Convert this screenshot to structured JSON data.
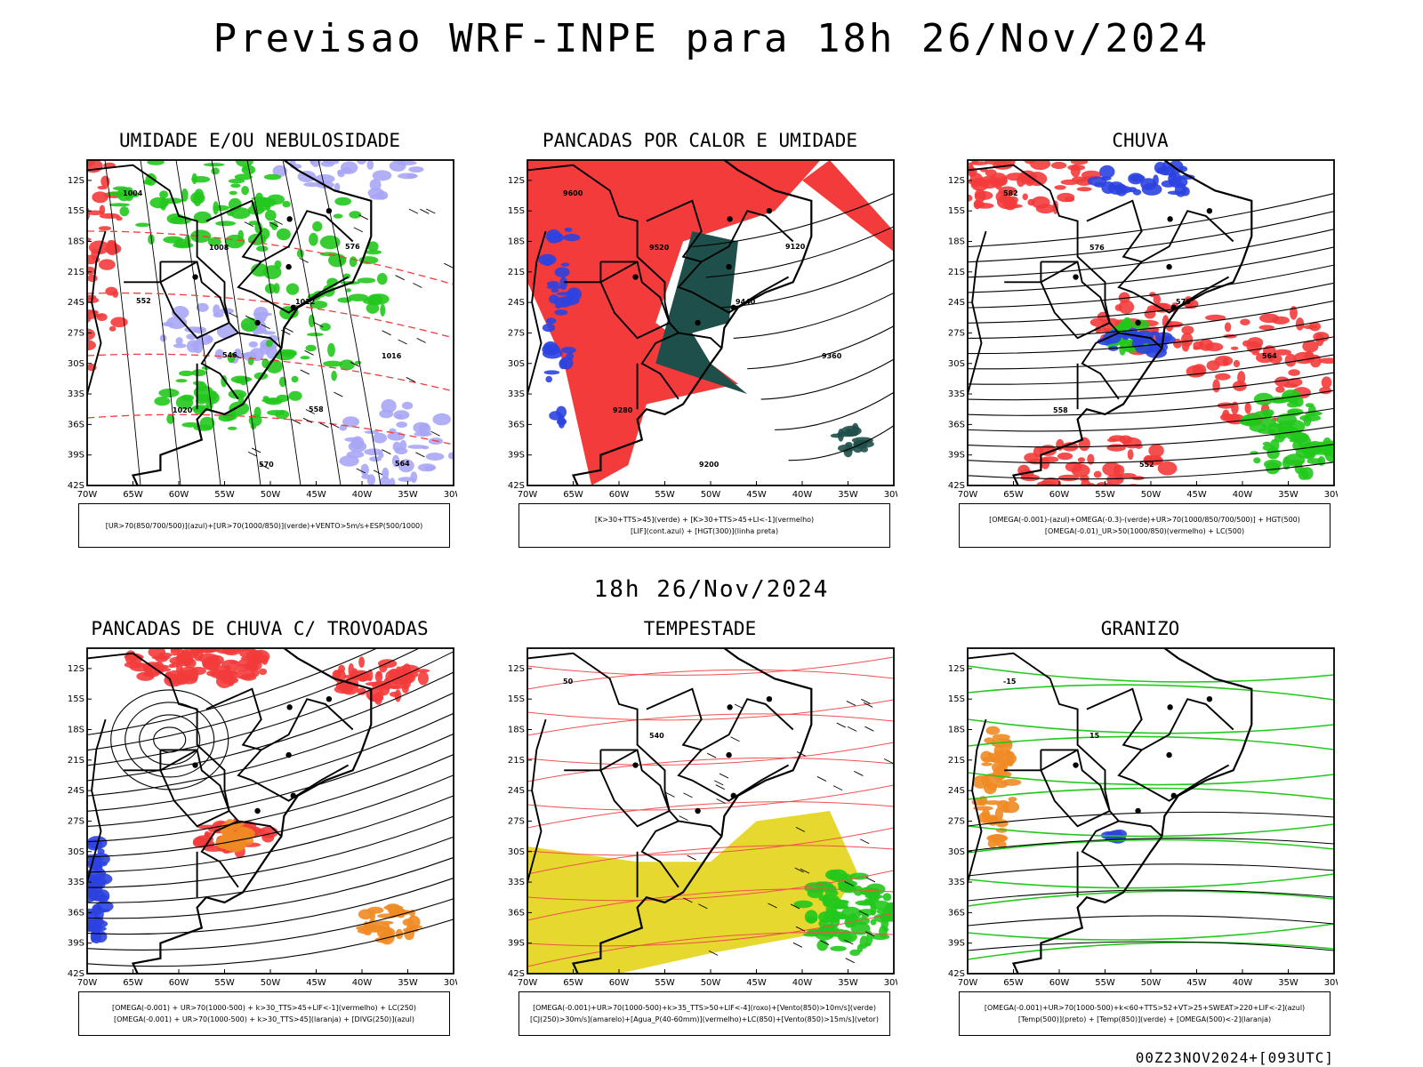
{
  "title": "Previsao WRF-INPE  para 18h 26/Nov/2024",
  "middle_label": "18h 26/Nov/2024",
  "footer": "00Z23NOV2024+[093UTC]",
  "axes": {
    "lat_labels": [
      "12S",
      "15S",
      "18S",
      "21S",
      "24S",
      "27S",
      "30S",
      "33S",
      "36S",
      "39S",
      "42S"
    ],
    "lon_labels": [
      "70W",
      "65W",
      "60W",
      "55W",
      "50W",
      "45W",
      "40W",
      "35W",
      "30W"
    ]
  },
  "colors": {
    "red": "#f33b3b",
    "blue": "#2c43e0",
    "green": "#22c81c",
    "lavender": "#a9a6f5",
    "teal": "#1f4f4a",
    "yellow": "#e6d82f",
    "orange": "#f08a24",
    "contour": "#000000",
    "salmon": "#f05050"
  },
  "chart_data": [
    {
      "type": "heatmap",
      "title": "UMIDADE E/OU NEBULOSIDADE",
      "legend": [
        "[UR>70(850/700/500)](azul)+[UR>70(1000/850)](verde)+VENTO>5m/s+ESP(500/1000)"
      ],
      "contour_labels": [
        "1004",
        "1008",
        "1012",
        "1016",
        "1020",
        "570",
        "576",
        "552",
        "546",
        "558",
        "564"
      ],
      "xlim": [
        -70,
        -30
      ],
      "ylim": [
        -42,
        -10
      ]
    },
    {
      "type": "heatmap",
      "title": "PANCADAS POR CALOR E UMIDADE",
      "legend": [
        "[K>30+TTS>45](verde) + [K>30+TTS>45+LI<-1](vermelho)",
        "[LIF](cont.azul) + [HGT(300)](linha preta)"
      ],
      "contour_labels": [
        "9600",
        "9520",
        "9440",
        "9360",
        "9280",
        "9200",
        "9120"
      ],
      "xlim": [
        -70,
        -30
      ],
      "ylim": [
        -42,
        -10
      ]
    },
    {
      "type": "heatmap",
      "title": "CHUVA",
      "legend": [
        "[OMEGA(-0.001)-(azul)+OMEGA(-0.3)-(verde)+UR>70(1000/850/700/500)] + HGT(500)",
        "[OMEGA(-0.01)_UR>50(1000/850)(vermelho) + LC(500)"
      ],
      "contour_labels": [
        "582",
        "576",
        "570",
        "564",
        "558",
        "552"
      ],
      "xlim": [
        -70,
        -30
      ],
      "ylim": [
        -42,
        -10
      ]
    },
    {
      "type": "heatmap",
      "title": "PANCADAS DE CHUVA C/ TROVOADAS",
      "legend": [
        "[OMEGA(-0.001) + UR>70(1000-500) + k>30_TTS>45+LIF<-1](vermelho) + LC(250)",
        "[OMEGA(-0.001) + UR>70(1000-500) + k>30_TTS>45](laranja) + [DIVG(250)](azul)"
      ],
      "contour_labels": [],
      "xlim": [
        -70,
        -30
      ],
      "ylim": [
        -42,
        -10
      ]
    },
    {
      "type": "heatmap",
      "title": "TEMPESTADE",
      "legend": [
        "[OMEGA(-0.001)+UR>70(1000-500)+k>35_TTS>50+LIF<-4](roxo)+[Vento(850)>10m/s](verde)",
        "[CJ(250)>30m/s](amarelo)+[Agua_P(40-60mm)](vermelho)+LC(850)+[Vento(850)>15m/s](vetor)"
      ],
      "contour_labels": [
        "50",
        "540"
      ],
      "xlim": [
        -70,
        -30
      ],
      "ylim": [
        -42,
        -10
      ]
    },
    {
      "type": "heatmap",
      "title": "GRANIZO",
      "legend": [
        "[OMEGA(-0.001)+UR>70(1000-500)+k<60+TTS>52+VT>25+SWEAT>220+LIF<-2](azul)",
        "[Temp(500)](preto) + [Temp(850)](verde) + [OMEGA(500)<-2](laranja)"
      ],
      "contour_labels": [
        "-15",
        "15"
      ],
      "xlim": [
        -70,
        -30
      ],
      "ylim": [
        -42,
        -10
      ]
    }
  ]
}
